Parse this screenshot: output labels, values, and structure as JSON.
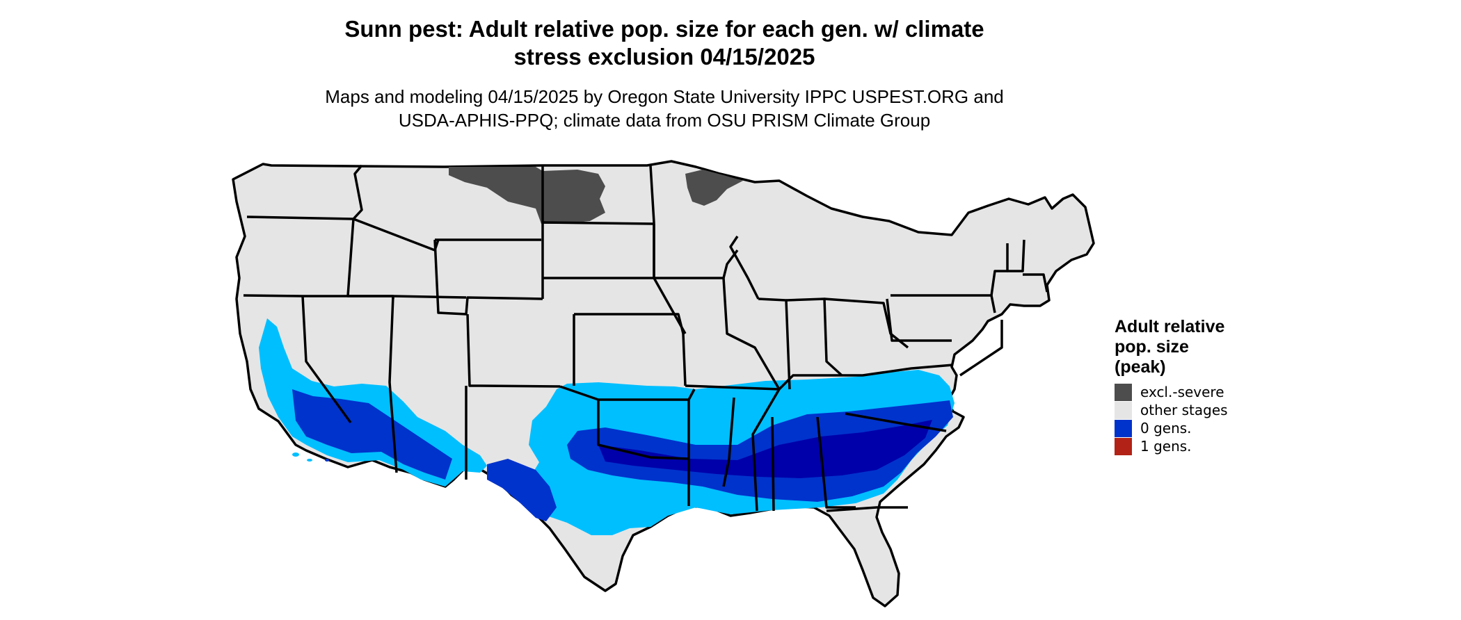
{
  "title": {
    "line1": "Sunn pest: Adult relative pop. size for each gen. w/ climate",
    "line2": "stress exclusion 04/15/2025"
  },
  "subtitle": {
    "line1": "Maps and modeling 04/15/2025 by Oregon State University IPPC USPEST.ORG and",
    "line2": "USDA-APHIS-PPQ; climate data from OSU PRISM Climate Group"
  },
  "legend": {
    "title_line1": "Adult relative",
    "title_line2": "pop. size",
    "title_line3": "(peak)",
    "items": [
      {
        "label": "excl.-severe",
        "color": "#4d4d4d"
      },
      {
        "label": "other stages",
        "color": "#e5e5e5"
      },
      {
        "label": "0 gens.",
        "color": "#0033cc"
      },
      {
        "label": "1 gens.",
        "color": "#b22216"
      }
    ]
  },
  "map_colors": {
    "land": "#e5e5e5",
    "border": "#000000",
    "excluded": "#4d4d4d",
    "light_blue": "#00bfff",
    "mid_blue": "#0033cc",
    "dark_blue": "#0000aa"
  }
}
